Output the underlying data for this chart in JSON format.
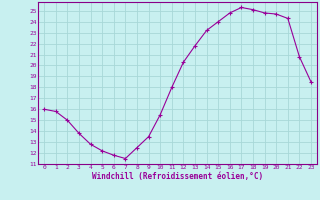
{
  "x": [
    0,
    1,
    2,
    3,
    4,
    5,
    6,
    7,
    8,
    9,
    10,
    11,
    12,
    13,
    14,
    15,
    16,
    17,
    18,
    19,
    20,
    21,
    22,
    23
  ],
  "y": [
    16.0,
    15.8,
    15.0,
    13.8,
    12.8,
    12.2,
    11.8,
    11.5,
    12.5,
    13.5,
    15.5,
    18.0,
    20.3,
    21.8,
    23.2,
    24.0,
    24.8,
    25.3,
    25.1,
    24.8,
    24.7,
    24.3,
    20.8,
    18.5
  ],
  "xlim": [
    -0.5,
    23.5
  ],
  "ylim": [
    11,
    25.8
  ],
  "yticks": [
    11,
    12,
    13,
    14,
    15,
    16,
    17,
    18,
    19,
    20,
    21,
    22,
    23,
    24,
    25
  ],
  "xticks": [
    0,
    1,
    2,
    3,
    4,
    5,
    6,
    7,
    8,
    9,
    10,
    11,
    12,
    13,
    14,
    15,
    16,
    17,
    18,
    19,
    20,
    21,
    22,
    23
  ],
  "xlabel": "Windchill (Refroidissement éolien,°C)",
  "line_color": "#990099",
  "marker": "+",
  "bg_color": "#c8f0f0",
  "grid_color": "#a8d8d8",
  "spine_color": "#880088"
}
